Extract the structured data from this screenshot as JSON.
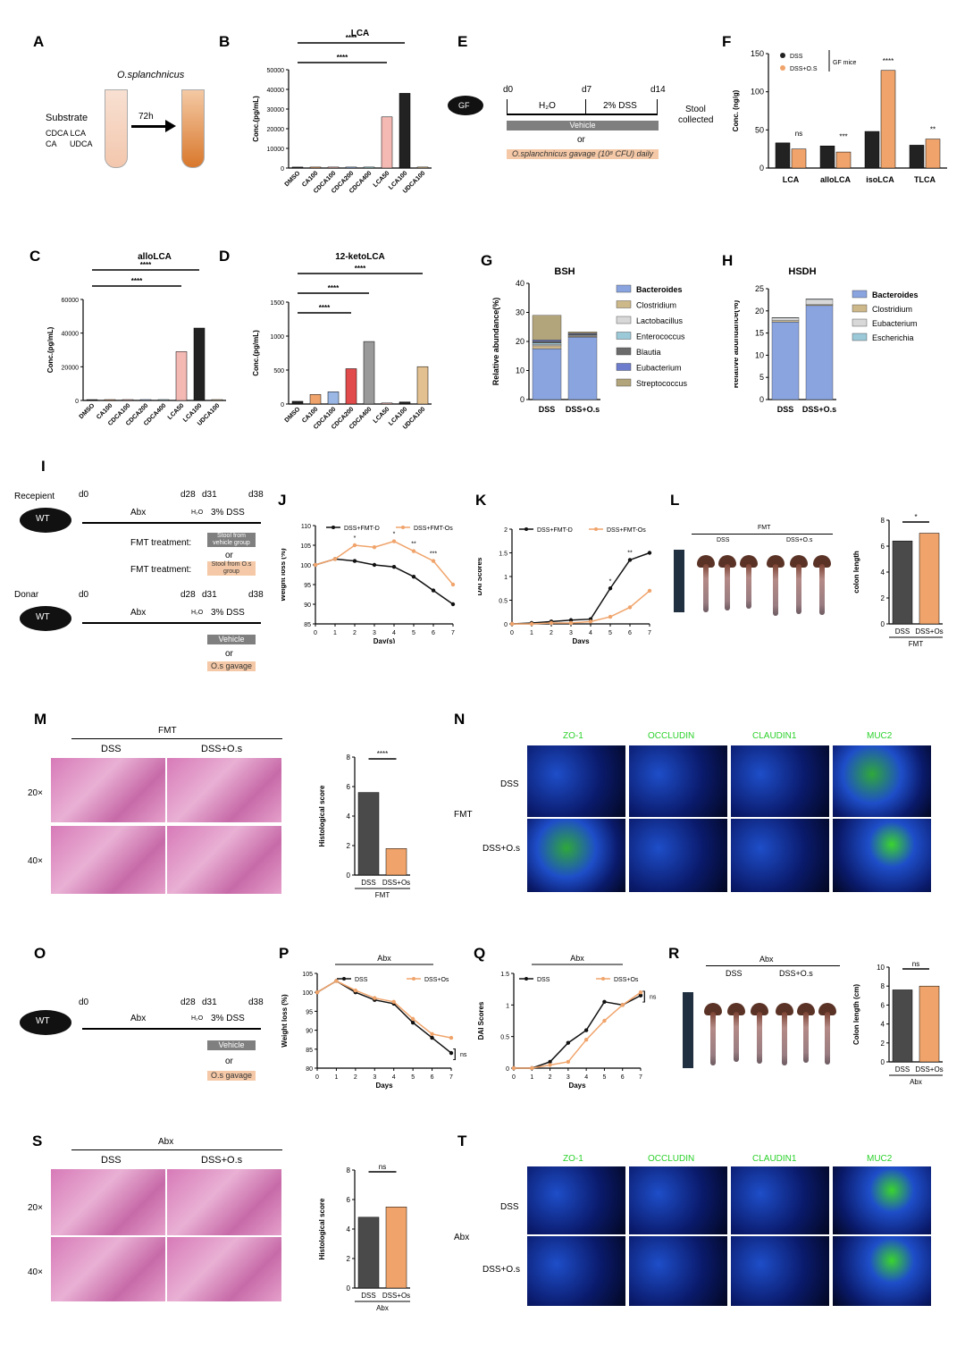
{
  "labels": {
    "A": "A",
    "B": "B",
    "C": "C",
    "D": "D",
    "E": "E",
    "F": "F",
    "G": "G",
    "H": "H",
    "I": "I",
    "J": "J",
    "K": "K",
    "L": "L",
    "M": "M",
    "N": "N",
    "O": "O",
    "P": "P",
    "Q": "Q",
    "R": "R",
    "S": "S",
    "T": "T"
  },
  "panelA": {
    "organism": "O.splanchnicus",
    "substrate": "Substrate",
    "sub_line1": "CDCA  LCA",
    "sub_line2": "CA      UDCA",
    "time": "72h"
  },
  "panelE": {
    "mouse": "GF",
    "d0": "d0",
    "d7": "d7",
    "d14": "d14",
    "water": "H₂O",
    "dss": "2% DSS",
    "stool": "Stool",
    "collected": "collected",
    "vehicle": "Vehicle",
    "or": "or",
    "gavage": "O.splanchnicus gavage (10⁸ CFU) daily"
  },
  "panelI": {
    "recepient": "Recepient",
    "donar": "Donar",
    "mouse": "WT",
    "d0": "d0",
    "d28": "d28",
    "d31": "d31",
    "d38": "d38",
    "abx": "Abx",
    "water": "H₂O",
    "dss": "3% DSS",
    "fmt": "FMT treatment:",
    "stool_vehicle": "Stool from vehicle group",
    "or": "or",
    "stool_os": "Stool from O.s group",
    "vehicle": "Vehicle",
    "os_gavage": "O.s gavage"
  },
  "panelO": {
    "mouse": "WT",
    "d0": "d0",
    "d28": "d28",
    "d31": "d31",
    "d38": "d38",
    "abx": "Abx",
    "water": "H₂O",
    "dss": "3% DSS",
    "vehicle": "Vehicle",
    "or": "or",
    "os_gavage": "O.s gavage"
  },
  "panelL": {
    "header": "FMT",
    "dss": "DSS",
    "dssos": "DSS+O.s"
  },
  "panelR": {
    "header": "Abx",
    "dss": "DSS",
    "dssos": "DSS+O.s"
  },
  "panelM": {
    "header": "FMT",
    "dss": "DSS",
    "dssos": "DSS+O.s",
    "mag20": "20×",
    "mag40": "40×"
  },
  "panelS": {
    "header": "Abx",
    "dss": "DSS",
    "dssos": "DSS+O.s",
    "mag20": "20×",
    "mag40": "40×"
  },
  "panelN": {
    "stains": [
      "ZO-1",
      "OCCLUDIN",
      "CLAUDIN1",
      "MUC2"
    ],
    "rows": [
      "DSS",
      "DSS+O.s"
    ],
    "group": "FMT"
  },
  "panelT": {
    "stains": [
      "ZO-1",
      "OCCLUDIN",
      "CLAUDIN1",
      "MUC2"
    ],
    "rows": [
      "DSS",
      "DSS+O.s"
    ],
    "group": "Abx"
  },
  "colors": {
    "black": "#222222",
    "peach": "#f0a46b",
    "pink": "#f4b9b3",
    "blue": "#9ab7e6",
    "teal": "#9fd3d6",
    "green": "#7ec2a0",
    "gray": "#9e9e9e",
    "tan": "#e2c08f"
  },
  "chart_data": [
    {
      "id": "B",
      "type": "bar",
      "title": "LCA",
      "ylabel": "Conc.(pg/mL)",
      "categories": [
        "DMSO",
        "CA100",
        "CDCA100",
        "CDCA200",
        "CDCA400",
        "LCA50",
        "LCA100",
        "UDCA100"
      ],
      "values": [
        500,
        500,
        500,
        500,
        500,
        26000,
        38000,
        500
      ],
      "ylim": [
        0,
        50000
      ],
      "yticks": [
        0,
        10000,
        20000,
        30000,
        40000,
        50000
      ],
      "sig": [
        "****",
        "****"
      ]
    },
    {
      "id": "C",
      "type": "bar",
      "title": "alloLCA",
      "ylabel": "Conc.(pg/mL)",
      "categories": [
        "DMSO",
        "CA100",
        "CDCA100",
        "CDCA200",
        "CDCA400",
        "LCA50",
        "LCA100",
        "UDCA100"
      ],
      "values": [
        500,
        500,
        500,
        500,
        500,
        29000,
        43000,
        500
      ],
      "ylim": [
        0,
        60000
      ],
      "yticks": [
        0,
        20000,
        40000,
        60000
      ],
      "sig": [
        "****",
        "****"
      ]
    },
    {
      "id": "D",
      "type": "bar",
      "title": "12-ketoLCA",
      "ylabel": "Conc.(pg/mL)",
      "categories": [
        "DMSO",
        "CA100",
        "CDCA100",
        "CDCA200",
        "CDCA400",
        "LCA50",
        "LCA100",
        "UDCA100"
      ],
      "values": [
        40,
        140,
        180,
        520,
        920,
        15,
        30,
        550
      ],
      "ylim": [
        0,
        1500
      ],
      "yticks": [
        0,
        500,
        1000,
        1500
      ],
      "sig": [
        "****",
        "****",
        "****"
      ]
    },
    {
      "id": "F",
      "type": "bar",
      "ylabel": "Conc. (ng/g)",
      "categories": [
        "LCA",
        "alloLCA",
        "isoLCA",
        "TLCA"
      ],
      "series": [
        {
          "name": "DSS",
          "values": [
            33,
            29,
            48,
            30
          ]
        },
        {
          "name": "DSS+O.S",
          "values": [
            25,
            21,
            128,
            38
          ]
        }
      ],
      "ylim": [
        0,
        150
      ],
      "yticks": [
        0,
        50,
        100,
        150
      ],
      "sig": [
        "ns",
        "***",
        "****",
        "**"
      ],
      "note": "GF mice"
    },
    {
      "id": "G",
      "type": "bar",
      "title": "BSH",
      "ylabel": "Relative abundance(%)",
      "categories": [
        "DSS",
        "DSS+O.s"
      ],
      "series": [
        {
          "name": "Bacteroides",
          "values": [
            17.5,
            21.5
          ]
        },
        {
          "name": "Clostridium",
          "values": [
            1,
            0.3
          ]
        },
        {
          "name": "Lactobacillus",
          "values": [
            0.5,
            0.3
          ]
        },
        {
          "name": "Enterococcus",
          "values": [
            0.5,
            0.2
          ]
        },
        {
          "name": "Blautia",
          "values": [
            0.5,
            0.2
          ]
        },
        {
          "name": "Eubacterium",
          "values": [
            0.5,
            0.3
          ]
        },
        {
          "name": "Streptococcus",
          "values": [
            8.5,
            0.5
          ]
        }
      ],
      "ylim": [
        0,
        40
      ],
      "yticks": [
        0,
        10,
        20,
        30,
        40
      ]
    },
    {
      "id": "H",
      "type": "bar",
      "title": "HSDH",
      "ylabel": "Relative abundance(%)",
      "categories": [
        "DSS",
        "DSS+O.s"
      ],
      "series": [
        {
          "name": "Bacteroides",
          "values": [
            17.5,
            21.2
          ]
        },
        {
          "name": "Clostridium",
          "values": [
            0.3,
            0.2
          ]
        },
        {
          "name": "Eubacterium",
          "values": [
            0.6,
            1.2
          ]
        },
        {
          "name": "Escherichia",
          "values": [
            0.1,
            0.1
          ]
        }
      ],
      "ylim": [
        0,
        25
      ],
      "yticks": [
        0,
        5,
        10,
        15,
        20,
        25
      ]
    },
    {
      "id": "J",
      "type": "line",
      "ylabel": "Weight loss (%)",
      "xlabel": "Day(s)",
      "x": [
        0,
        1,
        2,
        3,
        4,
        5,
        6,
        7
      ],
      "series": [
        {
          "name": "DSS+FMT-D",
          "values": [
            100,
            101.5,
            101,
            100,
            99.5,
            97,
            93.5,
            90
          ]
        },
        {
          "name": "DSS+FMT-Os",
          "values": [
            100,
            101.5,
            105,
            104.5,
            106,
            103.5,
            101,
            95
          ]
        }
      ],
      "ylim": [
        85,
        110
      ],
      "yticks": [
        85,
        90,
        95,
        100,
        105,
        110
      ],
      "sig": [
        "",
        "",
        "*",
        "",
        "*",
        "**",
        "***",
        ""
      ]
    },
    {
      "id": "K",
      "type": "line",
      "ylabel": "DAI Scores",
      "xlabel": "Days",
      "x": [
        0,
        1,
        2,
        3,
        4,
        5,
        6,
        7
      ],
      "series": [
        {
          "name": "DSS+FMT-D",
          "values": [
            0,
            0.02,
            0.05,
            0.08,
            0.1,
            0.75,
            1.35,
            1.5
          ]
        },
        {
          "name": "DSS+FMT-Os",
          "values": [
            0,
            0,
            0.02,
            0.02,
            0.05,
            0.15,
            0.35,
            0.7
          ]
        }
      ],
      "ylim": [
        0,
        2
      ],
      "yticks": [
        0,
        0.5,
        1.0,
        1.5,
        2.0
      ],
      "sig": [
        "",
        "",
        "",
        "",
        "",
        "*",
        "**",
        ""
      ]
    },
    {
      "id": "L",
      "type": "bar",
      "ylabel": "colon length",
      "categories": [
        "DSS",
        "DSS+Os"
      ],
      "values": [
        6.4,
        7.0
      ],
      "ylim": [
        0,
        8
      ],
      "yticks": [
        0,
        2,
        4,
        6,
        8
      ],
      "sig": [
        "*"
      ],
      "group": "FMT"
    },
    {
      "id": "M",
      "type": "bar",
      "ylabel": "Histological score",
      "categories": [
        "DSS",
        "DSS+Os"
      ],
      "values": [
        5.6,
        1.8
      ],
      "ylim": [
        0,
        8
      ],
      "yticks": [
        0,
        2,
        4,
        6,
        8
      ],
      "sig": [
        "****"
      ],
      "group": "FMT"
    },
    {
      "id": "P",
      "type": "line",
      "title": "Abx",
      "ylabel": "Weight loss (%)",
      "xlabel": "Days",
      "x": [
        0,
        1,
        2,
        3,
        4,
        5,
        6,
        7
      ],
      "series": [
        {
          "name": "DSS",
          "values": [
            100,
            103,
            100,
            98,
            97,
            92,
            88,
            84
          ]
        },
        {
          "name": "DSS+Os",
          "values": [
            100,
            103,
            100.5,
            98.5,
            97.5,
            93,
            89,
            88
          ]
        }
      ],
      "ylim": [
        80,
        105
      ],
      "yticks": [
        80,
        85,
        90,
        95,
        100,
        105
      ],
      "sig": [
        "ns"
      ]
    },
    {
      "id": "Q",
      "type": "line",
      "title": "Abx",
      "ylabel": "DAI Scores",
      "xlabel": "Days",
      "x": [
        0,
        1,
        2,
        3,
        4,
        5,
        6,
        7
      ],
      "series": [
        {
          "name": "DSS",
          "values": [
            0,
            0,
            0.1,
            0.4,
            0.6,
            1.05,
            1.0,
            1.15
          ]
        },
        {
          "name": "DSS+Os",
          "values": [
            0,
            0,
            0.05,
            0.1,
            0.45,
            0.75,
            1.0,
            1.2
          ]
        }
      ],
      "ylim": [
        0,
        1.5
      ],
      "yticks": [
        0,
        0.5,
        1.0,
        1.5
      ],
      "sig": [
        "ns"
      ]
    },
    {
      "id": "R",
      "type": "bar",
      "ylabel": "Colon length (cm)",
      "categories": [
        "DSS",
        "DSS+Os"
      ],
      "values": [
        7.6,
        8.0
      ],
      "ylim": [
        0,
        10
      ],
      "yticks": [
        0,
        2,
        4,
        6,
        8,
        10
      ],
      "sig": [
        "ns"
      ],
      "group": "Abx"
    },
    {
      "id": "S",
      "type": "bar",
      "ylabel": "Histological score",
      "categories": [
        "DSS",
        "DSS+Os"
      ],
      "values": [
        4.8,
        5.5
      ],
      "ylim": [
        0,
        8
      ],
      "yticks": [
        0,
        2,
        4,
        6,
        8
      ],
      "sig": [
        "ns"
      ],
      "group": "Abx"
    }
  ]
}
